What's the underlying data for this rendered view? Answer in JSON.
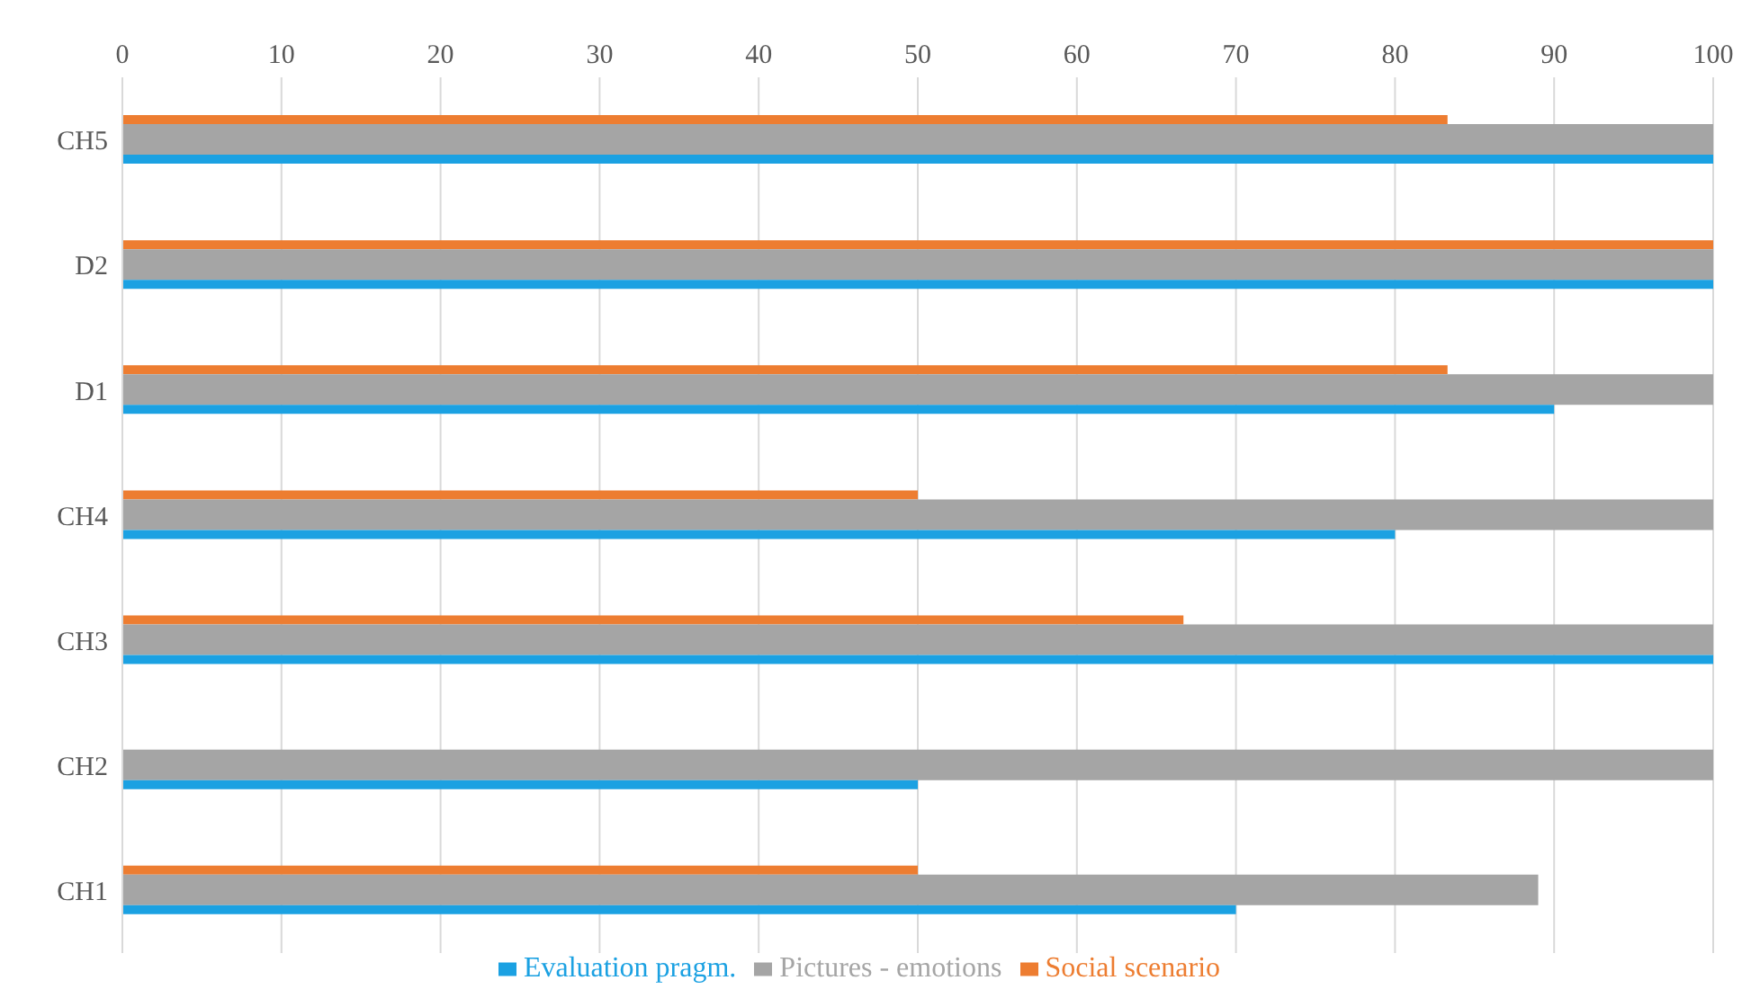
{
  "chart_data": {
    "type": "bar",
    "orientation": "horizontal",
    "categories": [
      "CH5",
      "D2",
      "D1",
      "CH4",
      "CH3",
      "CH2",
      "CH1"
    ],
    "series": [
      {
        "name": "Social scenario",
        "color": "#ed7d31",
        "values": [
          83.3,
          100,
          83.3,
          50,
          66.7,
          0,
          50
        ]
      },
      {
        "name": "Evaluation pragm.",
        "color": "#1ba1e2",
        "values": [
          100,
          100,
          90,
          80,
          100,
          50,
          70
        ]
      },
      {
        "name": "Pictures - emotions",
        "color": "#a5a5a5",
        "values": [
          100,
          100,
          100,
          100,
          100,
          100,
          89
        ]
      }
    ],
    "xlim": [
      0,
      100
    ],
    "xticks": [
      0,
      10,
      20,
      30,
      40,
      50,
      60,
      70,
      80,
      90,
      100
    ],
    "grid": "x",
    "legend": "bottom"
  }
}
